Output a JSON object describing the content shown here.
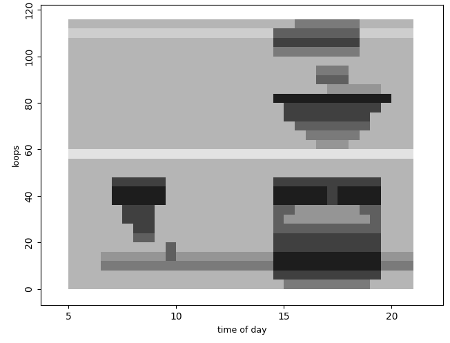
{
  "chart_data": {
    "type": "heatmap",
    "xlabel": "time of day",
    "ylabel": "loops",
    "xlim": [
      3.7,
      22.4
    ],
    "xticks": [
      5,
      10,
      15,
      20
    ],
    "ylim": [
      -7,
      122
    ],
    "yticks": [
      0,
      20,
      40,
      60,
      80,
      100,
      120
    ],
    "x_edges": [
      5,
      5.5,
      6,
      6.5,
      7,
      7.5,
      8,
      8.5,
      9,
      9.5,
      10,
      10.5,
      11,
      11.5,
      12,
      12.5,
      13,
      13.5,
      14,
      14.5,
      15,
      15.5,
      16,
      16.5,
      17,
      17.5,
      18,
      18.5,
      19,
      19.5,
      20,
      20.5,
      21
    ],
    "y_edges": [
      0,
      4,
      8,
      12,
      16,
      20,
      24,
      28,
      32,
      36,
      40,
      44,
      48,
      52,
      56,
      60,
      64,
      68,
      72,
      76,
      80,
      84,
      88,
      92,
      96,
      100,
      104,
      108,
      112,
      116
    ],
    "cell_range": [
      0,
      10
    ],
    "cells": [
      [
        4,
        4,
        4,
        4,
        4,
        4,
        4,
        4,
        4,
        4,
        4,
        4,
        4,
        4,
        4,
        4,
        4,
        4,
        4,
        4,
        6,
        6,
        6,
        6,
        6,
        6,
        6,
        6,
        4,
        4,
        4,
        4
      ],
      [
        4,
        4,
        4,
        4,
        4,
        4,
        4,
        4,
        4,
        4,
        4,
        4,
        4,
        4,
        4,
        4,
        4,
        4,
        4,
        8,
        8,
        8,
        8,
        8,
        8,
        8,
        8,
        8,
        8,
        4,
        4,
        4
      ],
      [
        4,
        4,
        4,
        6,
        6,
        6,
        6,
        6,
        6,
        6,
        6,
        6,
        6,
        6,
        6,
        6,
        6,
        6,
        6,
        9,
        9,
        9,
        9,
        9,
        9,
        9,
        9,
        9,
        9,
        6,
        6,
        6
      ],
      [
        4,
        4,
        4,
        5,
        5,
        5,
        5,
        5,
        5,
        7,
        5,
        5,
        5,
        5,
        5,
        5,
        5,
        5,
        5,
        9,
        9,
        9,
        9,
        9,
        9,
        9,
        9,
        9,
        9,
        5,
        5,
        5
      ],
      [
        4,
        4,
        4,
        4,
        4,
        4,
        4,
        4,
        4,
        7,
        4,
        4,
        4,
        4,
        4,
        4,
        4,
        4,
        4,
        8,
        8,
        8,
        8,
        8,
        8,
        8,
        8,
        8,
        8,
        4,
        4,
        4
      ],
      [
        4,
        4,
        4,
        4,
        4,
        4,
        7,
        7,
        4,
        4,
        4,
        4,
        4,
        4,
        4,
        4,
        4,
        4,
        4,
        8,
        8,
        8,
        8,
        8,
        8,
        8,
        8,
        8,
        8,
        4,
        4,
        4
      ],
      [
        4,
        4,
        4,
        4,
        4,
        4,
        8,
        8,
        4,
        4,
        4,
        4,
        4,
        4,
        4,
        4,
        4,
        4,
        4,
        7,
        7,
        7,
        7,
        7,
        7,
        7,
        7,
        7,
        7,
        4,
        4,
        4
      ],
      [
        4,
        4,
        4,
        4,
        4,
        8,
        8,
        8,
        4,
        4,
        4,
        4,
        4,
        4,
        4,
        4,
        4,
        4,
        4,
        7,
        5,
        5,
        5,
        5,
        5,
        5,
        5,
        5,
        7,
        4,
        4,
        4
      ],
      [
        4,
        4,
        4,
        4,
        4,
        8,
        8,
        8,
        4,
        4,
        4,
        4,
        4,
        4,
        4,
        4,
        4,
        4,
        4,
        7,
        7,
        5,
        5,
        5,
        5,
        5,
        5,
        7,
        7,
        4,
        4,
        4
      ],
      [
        4,
        4,
        4,
        4,
        9,
        9,
        9,
        9,
        9,
        4,
        4,
        4,
        4,
        4,
        4,
        4,
        4,
        4,
        4,
        9,
        9,
        9,
        9,
        9,
        8,
        9,
        9,
        9,
        9,
        4,
        4,
        4
      ],
      [
        4,
        4,
        4,
        4,
        9,
        9,
        9,
        9,
        9,
        4,
        4,
        4,
        4,
        4,
        4,
        4,
        4,
        4,
        4,
        9,
        9,
        9,
        9,
        9,
        8,
        9,
        9,
        9,
        9,
        4,
        4,
        4
      ],
      [
        4,
        4,
        4,
        4,
        8,
        8,
        8,
        8,
        8,
        4,
        4,
        4,
        4,
        4,
        4,
        4,
        4,
        4,
        4,
        8,
        8,
        8,
        8,
        8,
        8,
        8,
        8,
        8,
        8,
        4,
        4,
        4
      ],
      [
        4,
        4,
        4,
        4,
        4,
        4,
        4,
        4,
        4,
        4,
        4,
        4,
        4,
        4,
        4,
        4,
        4,
        4,
        4,
        4,
        4,
        4,
        4,
        4,
        4,
        4,
        4,
        4,
        4,
        4,
        4,
        4
      ],
      [
        4,
        4,
        4,
        4,
        4,
        4,
        4,
        4,
        4,
        4,
        4,
        4,
        4,
        4,
        4,
        4,
        4,
        4,
        4,
        4,
        4,
        4,
        4,
        4,
        4,
        4,
        4,
        4,
        4,
        4,
        4,
        4
      ],
      [
        2,
        2,
        2,
        2,
        2,
        2,
        2,
        2,
        2,
        2,
        2,
        2,
        2,
        2,
        2,
        2,
        2,
        2,
        2,
        2,
        2,
        2,
        2,
        2,
        2,
        2,
        2,
        2,
        2,
        2,
        2,
        2
      ],
      [
        4,
        4,
        4,
        4,
        4,
        4,
        4,
        4,
        4,
        4,
        4,
        4,
        4,
        4,
        4,
        4,
        4,
        4,
        4,
        4,
        4,
        4,
        4,
        5,
        5,
        5,
        4,
        4,
        4,
        4,
        4,
        4
      ],
      [
        4,
        4,
        4,
        4,
        4,
        4,
        4,
        4,
        4,
        4,
        4,
        4,
        4,
        4,
        4,
        4,
        4,
        4,
        4,
        4,
        4,
        4,
        6,
        6,
        6,
        6,
        6,
        4,
        4,
        4,
        4,
        4
      ],
      [
        4,
        4,
        4,
        4,
        4,
        4,
        4,
        4,
        4,
        4,
        4,
        4,
        4,
        4,
        4,
        4,
        4,
        4,
        4,
        4,
        4,
        7,
        7,
        7,
        7,
        7,
        7,
        7,
        4,
        4,
        4,
        4
      ],
      [
        4,
        4,
        4,
        4,
        4,
        4,
        4,
        4,
        4,
        4,
        4,
        4,
        4,
        4,
        4,
        4,
        4,
        4,
        4,
        4,
        8,
        8,
        8,
        8,
        8,
        8,
        8,
        8,
        4,
        4,
        4,
        4
      ],
      [
        4,
        4,
        4,
        4,
        4,
        4,
        4,
        4,
        4,
        4,
        4,
        4,
        4,
        4,
        4,
        4,
        4,
        4,
        4,
        4,
        8,
        8,
        8,
        8,
        8,
        8,
        8,
        8,
        8,
        4,
        4,
        4
      ],
      [
        4,
        4,
        4,
        4,
        4,
        4,
        4,
        4,
        4,
        4,
        4,
        4,
        4,
        4,
        4,
        4,
        4,
        4,
        4,
        9,
        9,
        9,
        9,
        9,
        9,
        9,
        9,
        9,
        9,
        9,
        4,
        4
      ],
      [
        4,
        4,
        4,
        4,
        4,
        4,
        4,
        4,
        4,
        4,
        4,
        4,
        4,
        4,
        4,
        4,
        4,
        4,
        4,
        4,
        4,
        4,
        4,
        4,
        5,
        5,
        5,
        5,
        5,
        4,
        4,
        4
      ],
      [
        4,
        4,
        4,
        4,
        4,
        4,
        4,
        4,
        4,
        4,
        4,
        4,
        4,
        4,
        4,
        4,
        4,
        4,
        4,
        4,
        4,
        4,
        4,
        7,
        7,
        7,
        4,
        4,
        4,
        4,
        4,
        4
      ],
      [
        4,
        4,
        4,
        4,
        4,
        4,
        4,
        4,
        4,
        4,
        4,
        4,
        4,
        4,
        4,
        4,
        4,
        4,
        4,
        4,
        4,
        4,
        4,
        6,
        6,
        6,
        4,
        4,
        4,
        4,
        4,
        4
      ],
      [
        4,
        4,
        4,
        4,
        4,
        4,
        4,
        4,
        4,
        4,
        4,
        4,
        4,
        4,
        4,
        4,
        4,
        4,
        4,
        4,
        4,
        4,
        4,
        4,
        4,
        4,
        4,
        4,
        4,
        4,
        4,
        4
      ],
      [
        4,
        4,
        4,
        4,
        4,
        4,
        4,
        4,
        4,
        4,
        4,
        4,
        4,
        4,
        4,
        4,
        4,
        4,
        4,
        6,
        6,
        6,
        6,
        6,
        6,
        6,
        6,
        4,
        4,
        4,
        4,
        4
      ],
      [
        4,
        4,
        4,
        4,
        4,
        4,
        4,
        4,
        4,
        4,
        4,
        4,
        4,
        4,
        4,
        4,
        4,
        4,
        4,
        8,
        8,
        8,
        8,
        8,
        8,
        8,
        8,
        4,
        4,
        4,
        4,
        4
      ],
      [
        3,
        3,
        3,
        3,
        3,
        3,
        3,
        3,
        3,
        3,
        3,
        3,
        3,
        3,
        3,
        3,
        3,
        3,
        3,
        7,
        7,
        7,
        7,
        7,
        7,
        7,
        7,
        3,
        3,
        3,
        3,
        3
      ],
      [
        4,
        4,
        4,
        4,
        4,
        4,
        4,
        4,
        4,
        4,
        4,
        4,
        4,
        4,
        4,
        4,
        4,
        4,
        4,
        4,
        4,
        6,
        6,
        6,
        6,
        6,
        6,
        4,
        4,
        4,
        4,
        4
      ]
    ]
  }
}
